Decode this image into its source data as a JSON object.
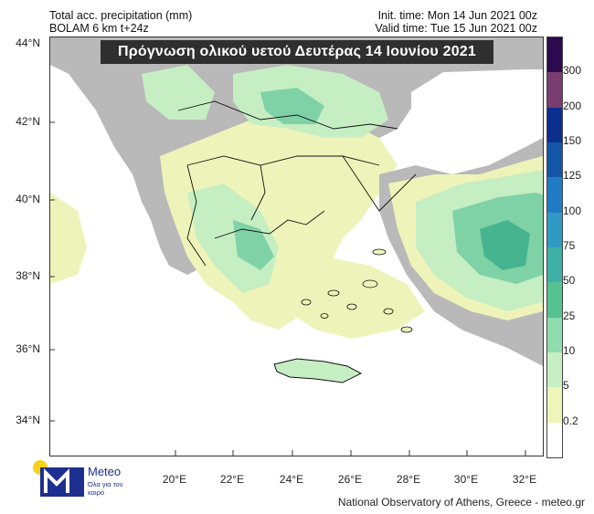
{
  "header": {
    "line1_left": "Total acc. precipitation (mm)",
    "line2_left": "BOLAM 6 km t+24z",
    "line1_right": "Init. time: Mon 14 Jun 2021 00z",
    "line2_right": "Valid time: Tue 15 Jun 2021 00z"
  },
  "title": "Πρόγνωση ολικού υετού Δευτέρας 14 Ιουνίου 2021",
  "axes": {
    "latitudes": [
      "44°N",
      "42°N",
      "40°N",
      "38°N",
      "36°N",
      "34°N"
    ],
    "longitudes": [
      "20°E",
      "22°E",
      "24°E",
      "26°E",
      "28°E",
      "30°E",
      "32°E"
    ]
  },
  "colorbar": {
    "labels": [
      "300",
      "200",
      "150",
      "125",
      "100",
      "75",
      "50",
      "25",
      "10",
      "5",
      "0.2"
    ],
    "colors": [
      "#2b0a4e",
      "#7a3d6f",
      "#0b2f8f",
      "#1457a8",
      "#1f7cc4",
      "#2f9bc4",
      "#3fb0a5",
      "#55c391",
      "#8fdcae",
      "#c7efc4",
      "#edf5b8",
      "#ffffff"
    ]
  },
  "map_colors": {
    "land_gray": "#b9b9b9",
    "sea": "#ffffff",
    "light_precip": "#eef4b9",
    "low_precip": "#c6eec3",
    "mid_precip": "#7fd2a6",
    "high_precip": "#45b48f",
    "borders": "#111111"
  },
  "logo": {
    "name": "Meteo",
    "tagline": "Όλα για τον καιρό"
  },
  "credit": "National Observatory of Athens, Greece - meteo.gr"
}
